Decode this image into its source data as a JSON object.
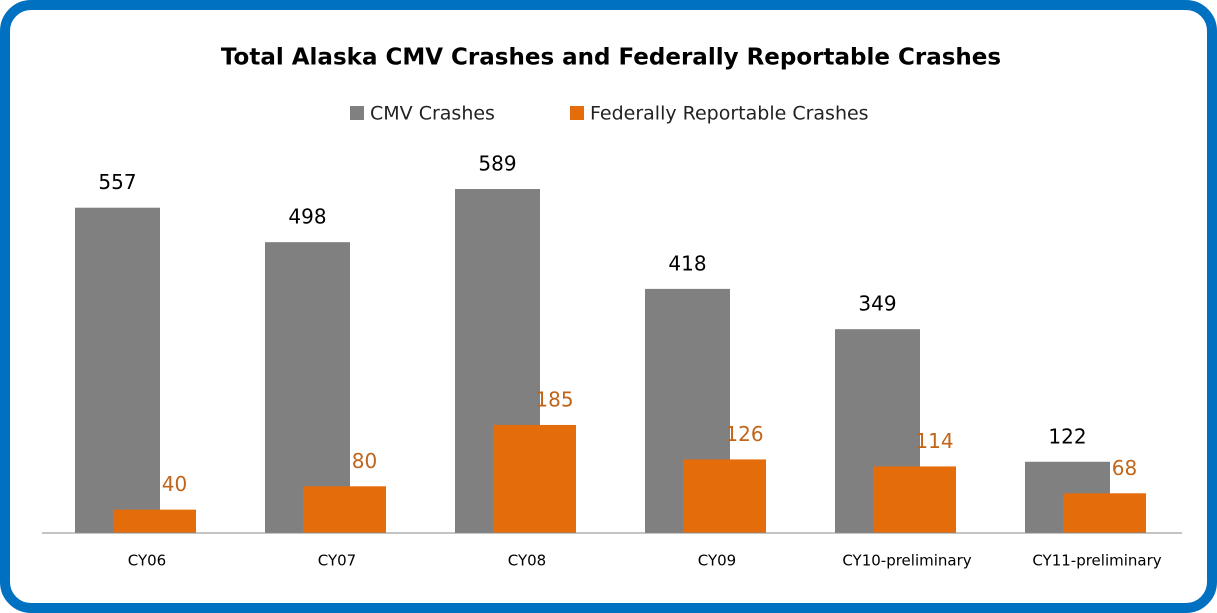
{
  "chart_data": {
    "type": "bar",
    "title": "Total Alaska CMV Crashes and Federally Reportable Crashes",
    "categories": [
      "CY06",
      "CY07",
      "CY08",
      "CY09",
      "CY10-preliminary",
      "CY11-preliminary"
    ],
    "series": [
      {
        "name": "CMV Crashes",
        "color": "#808080",
        "label_color": "#000000",
        "values": [
          557,
          498,
          589,
          418,
          349,
          122
        ]
      },
      {
        "name": "Federally Reportable Crashes",
        "color": "#e46c0a",
        "label_color": "#c0651a",
        "values": [
          40,
          80,
          185,
          126,
          114,
          68
        ]
      }
    ],
    "ylim": [
      0,
      650
    ]
  }
}
